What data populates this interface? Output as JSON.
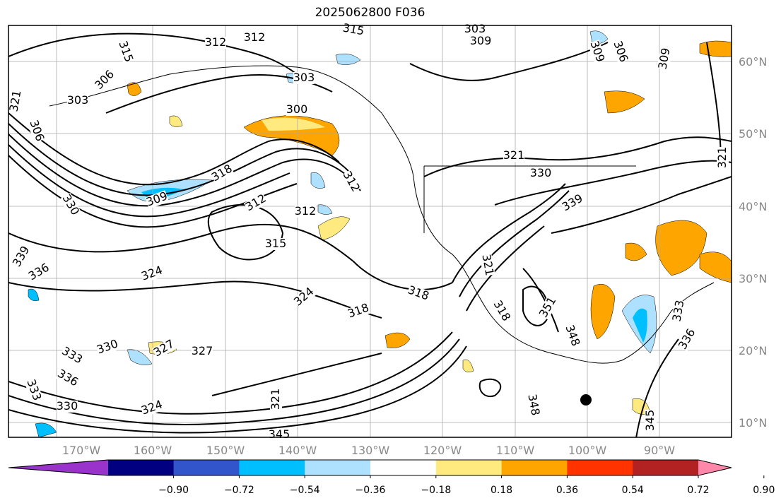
{
  "title": "2025062800 F036",
  "map": {
    "lon_ticks": [
      "170°W",
      "160°W",
      "150°W",
      "140°W",
      "130°W",
      "120°W",
      "110°W",
      "100°W",
      "90°W"
    ],
    "lat_ticks": [
      "60°N",
      "50°N",
      "40°N",
      "30°N",
      "20°N",
      "10°N"
    ],
    "tick_color": "#888888",
    "contour_labels": [
      "312",
      "315",
      "303",
      "309",
      "312",
      "315",
      "306",
      "309",
      "306",
      "309",
      "303",
      "303",
      "300",
      "321",
      "306",
      "318",
      "309",
      "330",
      "312",
      "312",
      "312",
      "315",
      "321",
      "330",
      "339",
      "318",
      "321",
      "324",
      "324",
      "318",
      "318",
      "333",
      "336",
      "351",
      "348",
      "348",
      "333",
      "336",
      "327",
      "321",
      "327",
      "330",
      "333",
      "336",
      "339",
      "330",
      "324",
      "321",
      "345",
      "345"
    ]
  },
  "colorbar": {
    "colors": [
      "#9933cc",
      "#000080",
      "#3355cc",
      "#00bfff",
      "#aee0ff",
      "#ffffff",
      "#ffea80",
      "#ffa500",
      "#ff3300",
      "#b22222",
      "#ff88aa"
    ],
    "labels": [
      "−0.90",
      "−0.72",
      "−0.54",
      "−0.36",
      "−0.18",
      "0.18",
      "0.36",
      "0.54",
      "0.72",
      "0.90"
    ]
  }
}
